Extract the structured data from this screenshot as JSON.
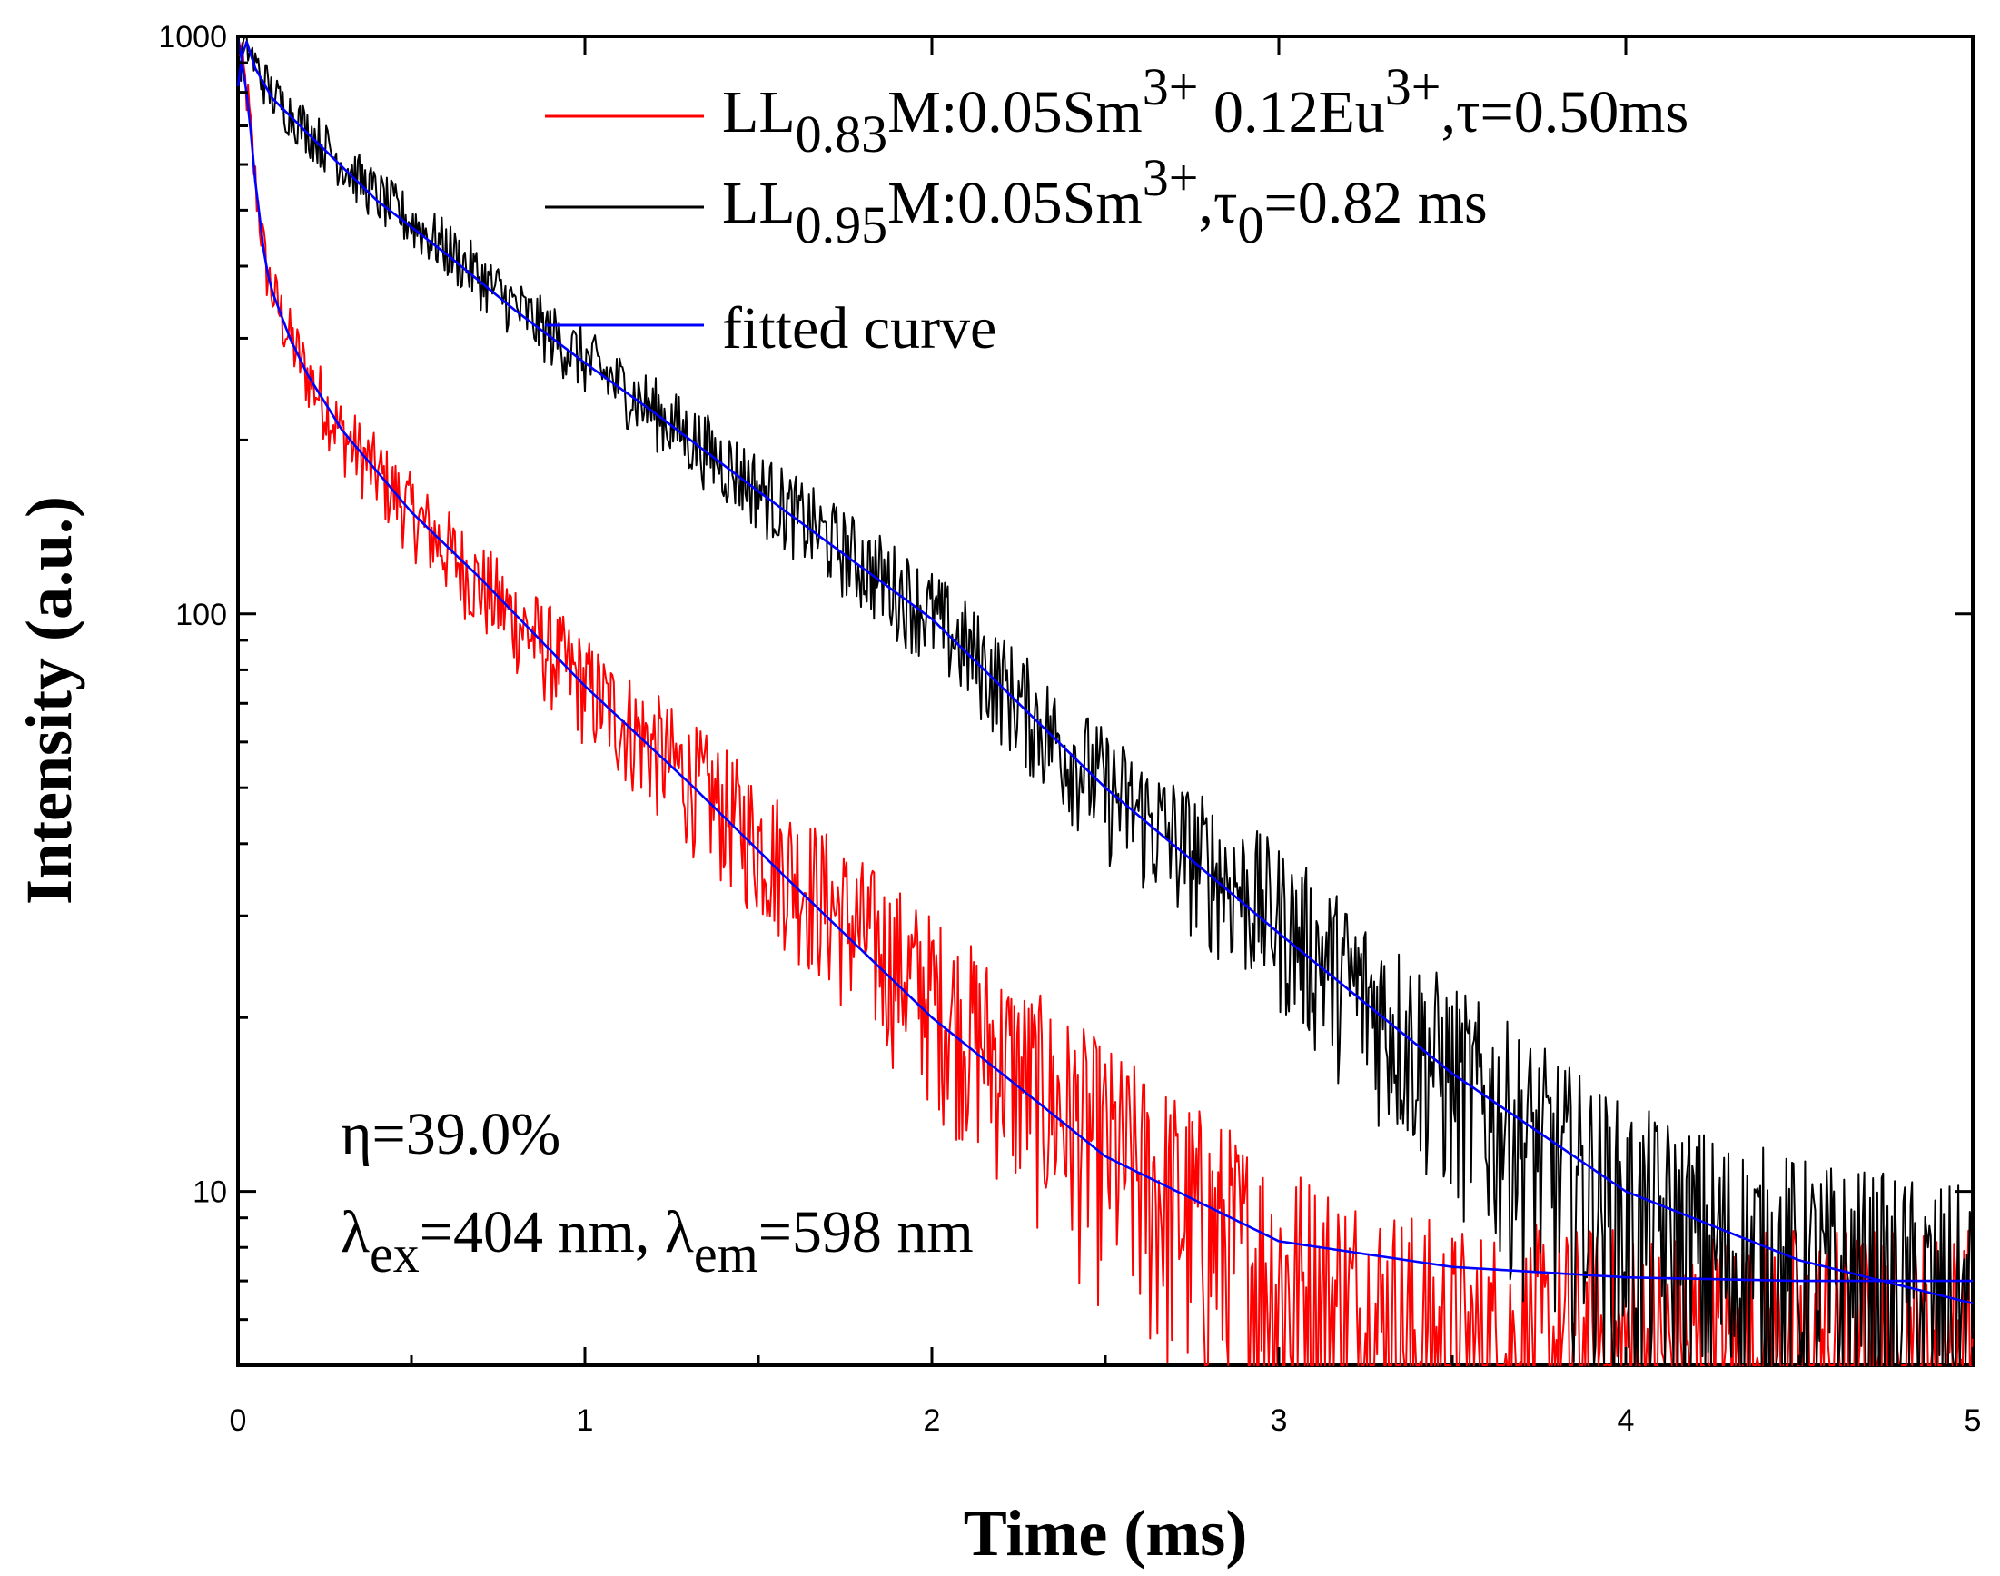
{
  "chart_data": {
    "type": "line",
    "title": "",
    "xlabel": "Time (ms)",
    "ylabel": "Intensity (a.u.)",
    "xlim": [
      0,
      5
    ],
    "ylim": [
      5,
      1000
    ],
    "yscale": "log",
    "grid": false,
    "legend_position": "top-right",
    "x_ticks": [
      "0",
      "1",
      "2",
      "3",
      "4",
      "5"
    ],
    "y_ticks": [
      "10",
      "100",
      "1000"
    ],
    "legend": {
      "red": {
        "main": "LL",
        "sub1": "0.83",
        "mid1": "M:0.05Sm",
        "sup1": "3+",
        "mid2": " 0.12Eu",
        "sup2": "3+",
        "tail": ",τ=0.50ms"
      },
      "black": {
        "main": "LL",
        "sub1": "0.95",
        "mid1": "M:0.05Sm",
        "sup1": "3+",
        "mid2": ",τ",
        "sub2": "0",
        "tail": "=0.82 ms"
      },
      "blue": "fitted curve"
    },
    "annotations": {
      "eta": "η=39.0%",
      "lambda": {
        "l1": "λ",
        "s1": "ex",
        "m1": "=404 nm, λ",
        "s2": "em",
        "m2": "=598 nm"
      }
    },
    "series": [
      {
        "color": "#ff0000",
        "style": "noisy",
        "x": [
          0,
          0.03,
          0.05,
          0.08,
          0.1,
          0.15,
          0.2,
          0.3,
          0.5,
          0.7,
          1.0,
          1.3,
          1.6,
          2.0,
          2.5,
          3.0,
          3.5,
          4.0,
          4.5,
          5.0
        ],
        "y": [
          1000,
          760,
          560,
          400,
          360,
          300,
          260,
          205,
          150,
          112,
          75,
          52,
          36,
          22,
          12,
          7,
          5,
          5,
          5,
          5
        ]
      },
      {
        "color": "#000000",
        "style": "noisy",
        "x": [
          0,
          0.02,
          0.05,
          0.1,
          0.2,
          0.4,
          0.6,
          0.8,
          1.0,
          1.2,
          1.5,
          2.0,
          2.5,
          3.0,
          3.5,
          4.0,
          4.5,
          5.0
        ],
        "y": [
          800,
          1000,
          890,
          790,
          690,
          530,
          430,
          340,
          275,
          225,
          165,
          100,
          50,
          30,
          16,
          9,
          7,
          6
        ]
      },
      {
        "name": "fitted curve",
        "color": "#0000ff",
        "style": "smooth",
        "x": [
          0,
          0.03,
          0.05,
          0.08,
          0.1,
          0.15,
          0.2,
          0.3,
          0.5,
          0.7,
          1.0,
          1.3,
          1.6,
          2.0,
          2.5,
          3.0,
          3.5,
          4.0,
          4.5,
          5.0
        ],
        "y": [
          1000,
          760,
          560,
          400,
          360,
          300,
          260,
          208,
          150,
          115,
          75,
          51,
          34,
          20,
          11.5,
          8.2,
          7.4,
          7.1,
          7.0,
          7.0
        ]
      },
      {
        "name": "fitted curve",
        "color": "#0000ff",
        "style": "smooth",
        "x": [
          0,
          0.02,
          0.05,
          0.1,
          0.2,
          0.4,
          0.6,
          0.8,
          1.0,
          1.2,
          1.5,
          2.0,
          2.5,
          3.0,
          3.5,
          4.0,
          4.5,
          5.0
        ],
        "y": [
          820,
          1000,
          880,
          780,
          680,
          520,
          420,
          335,
          272,
          223,
          163,
          98,
          50,
          28,
          16,
          10,
          7.6,
          6.4
        ]
      }
    ]
  }
}
